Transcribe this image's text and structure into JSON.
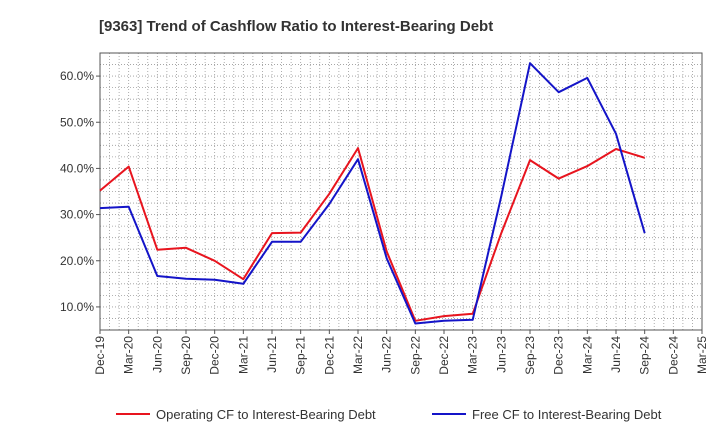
{
  "chart_data": {
    "type": "line",
    "title": "[9363]  Trend of Cashflow Ratio to Interest-Bearing Debt",
    "xlabel": "",
    "ylabel": "",
    "x": [
      "Dec-19",
      "Mar-20",
      "Jun-20",
      "Sep-20",
      "Dec-20",
      "Mar-21",
      "Jun-21",
      "Sep-21",
      "Dec-21",
      "Mar-22",
      "Jun-22",
      "Sep-22",
      "Dec-22",
      "Mar-23",
      "Jun-23",
      "Sep-23",
      "Dec-23",
      "Mar-24",
      "Jun-24",
      "Sep-24",
      "Dec-24",
      "Mar-25"
    ],
    "x_tick_labels": [
      "Dec-19",
      "Mar-20",
      "Jun-20",
      "Sep-20",
      "Dec-20",
      "Mar-21",
      "Jun-21",
      "Sep-21",
      "Dec-21",
      "Mar-22",
      "Jun-22",
      "Sep-22",
      "Dec-22",
      "Mar-23",
      "Jun-23",
      "Sep-23",
      "Dec-23",
      "Mar-24",
      "Jun-24",
      "Sep-24",
      "Dec-24",
      "Mar-25"
    ],
    "ylim": [
      5,
      65
    ],
    "y_ticks": [
      10,
      20,
      30,
      40,
      50,
      60
    ],
    "y_tick_labels": [
      "10.0%",
      "20.0%",
      "30.0%",
      "40.0%",
      "50.0%",
      "60.0%"
    ],
    "grid": true,
    "legend_position": "bottom",
    "series": [
      {
        "name": "Operating CF to Interest-Bearing Debt",
        "color": "#e8141e",
        "values": [
          35.2,
          40.4,
          22.4,
          22.8,
          20.0,
          16.0,
          26.0,
          26.1,
          34.5,
          44.4,
          22.0,
          7.0,
          8.0,
          8.5,
          26.0,
          41.8,
          37.8,
          40.5,
          44.2,
          42.3,
          null,
          null
        ]
      },
      {
        "name": "Free CF to Interest-Bearing Debt",
        "color": "#1414c8",
        "values": [
          31.4,
          31.7,
          16.7,
          16.1,
          15.9,
          15.0,
          24.1,
          24.1,
          32.3,
          42.0,
          20.5,
          6.4,
          7.0,
          7.2,
          34.0,
          62.8,
          56.5,
          59.6,
          47.5,
          26.0,
          null,
          null
        ]
      }
    ]
  }
}
